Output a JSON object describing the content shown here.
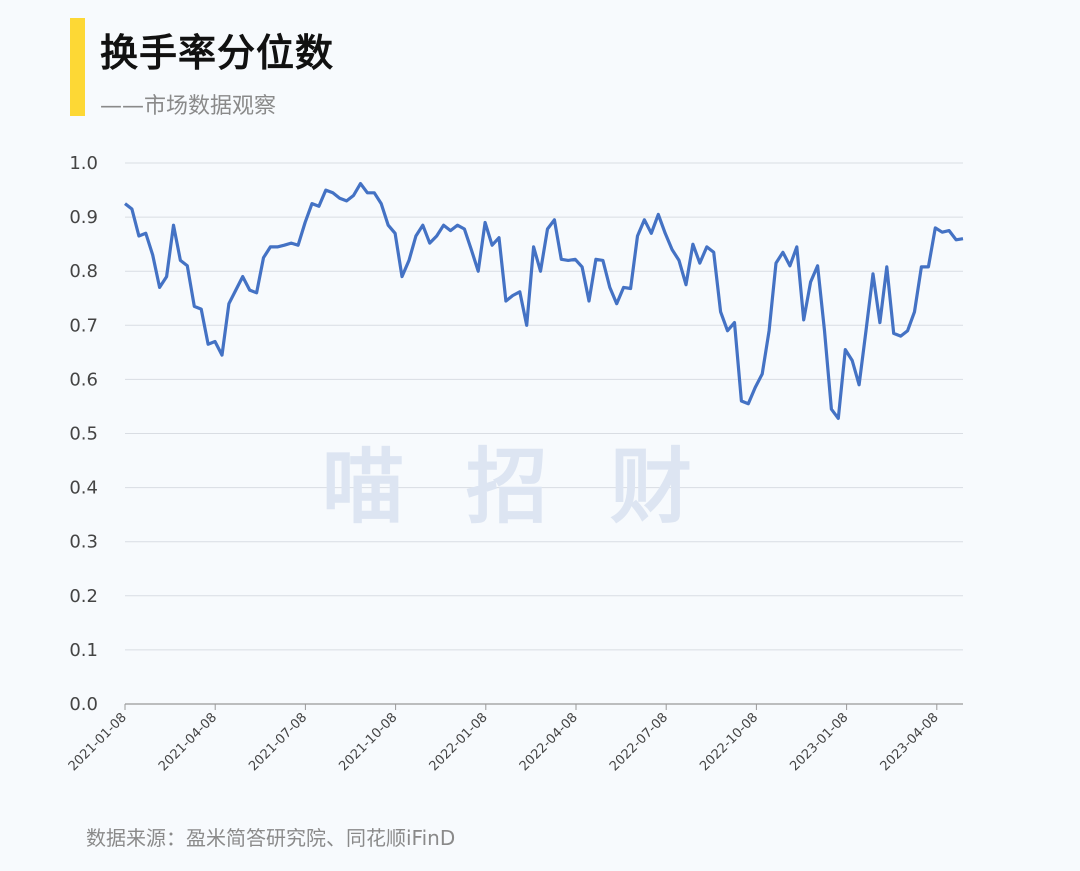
{
  "header": {
    "title": "换手率分位数",
    "subtitle": "——市场数据观察"
  },
  "watermark": "喵招财",
  "footer": {
    "source": "数据来源：盈米简答研究院、同花顺iFinD"
  },
  "colors": {
    "accent": "#fdd835",
    "line": "#4472c4",
    "grid": "#d9dde3",
    "background": "#f7fafd"
  },
  "chart_data": {
    "type": "line",
    "title": "",
    "xlabel": "",
    "ylabel": "",
    "ylim": [
      0,
      1.0
    ],
    "y_ticks": [
      "0.0",
      "0.1",
      "0.2",
      "0.3",
      "0.4",
      "0.5",
      "0.6",
      "0.7",
      "0.8",
      "0.9",
      "1.0"
    ],
    "x_ticks": [
      "2021-01-08",
      "2021-04-08",
      "2021-07-08",
      "2021-10-08",
      "2022-01-08",
      "2022-04-08",
      "2022-07-08",
      "2022-10-08",
      "2023-01-08",
      "2023-04-08"
    ],
    "grid": true,
    "legend": "none",
    "series": [
      {
        "values": [
          0.925,
          0.915,
          0.865,
          0.87,
          0.83,
          0.77,
          0.79,
          0.885,
          0.82,
          0.81,
          0.735,
          0.73,
          0.665,
          0.67,
          0.645,
          0.74,
          0.765,
          0.79,
          0.765,
          0.76,
          0.825,
          0.845,
          0.845,
          0.848,
          0.852,
          0.848,
          0.89,
          0.925,
          0.92,
          0.95,
          0.945,
          0.935,
          0.93,
          0.94,
          0.962,
          0.945,
          0.945,
          0.925,
          0.885,
          0.87,
          0.79,
          0.82,
          0.865,
          0.885,
          0.852,
          0.865,
          0.885,
          0.875,
          0.885,
          0.878,
          0.84,
          0.8,
          0.89,
          0.848,
          0.862,
          0.745,
          0.755,
          0.762,
          0.7,
          0.845,
          0.8,
          0.878,
          0.895,
          0.822,
          0.82,
          0.822,
          0.808,
          0.745,
          0.822,
          0.82,
          0.77,
          0.74,
          0.77,
          0.768,
          0.865,
          0.895,
          0.87,
          0.905,
          0.87,
          0.84,
          0.82,
          0.775,
          0.85,
          0.815,
          0.845,
          0.835,
          0.725,
          0.69,
          0.705,
          0.56,
          0.555,
          0.585,
          0.61,
          0.69,
          0.815,
          0.835,
          0.81,
          0.845,
          0.71,
          0.78,
          0.81,
          0.69,
          0.545,
          0.528,
          0.655,
          0.635,
          0.59,
          0.69,
          0.795,
          0.705,
          0.808,
          0.685,
          0.68,
          0.69,
          0.725,
          0.808,
          0.808,
          0.88,
          0.872,
          0.875,
          0.858,
          0.86
        ]
      }
    ]
  }
}
